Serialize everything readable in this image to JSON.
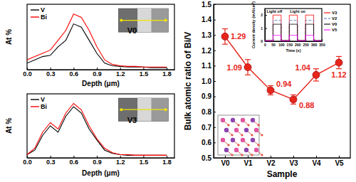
{
  "chart_data": [
    {
      "type": "line",
      "x": [
        0,
        0.1,
        0.2,
        0.3,
        0.4,
        0.5,
        0.6,
        0.7,
        0.8,
        0.9,
        1.0,
        1.1,
        1.2,
        1.3,
        1.4,
        1.5,
        1.6,
        1.7,
        1.8
      ],
      "xlim": [
        0,
        1.9
      ],
      "xticks": [
        {
          "value": 0,
          "label": "0.0"
        },
        0.3,
        0.6,
        0.9,
        1.2,
        1.5,
        1.8
      ],
      "ylim": [
        0,
        1
      ],
      "xlabel": "Depth (μm)",
      "ylabel": "At %",
      "tick_labels": "x",
      "legend": "upper left",
      "annotations": [
        "V0"
      ],
      "series": [
        {
          "name": "V",
          "color": "#000000",
          "values": [
            0.1,
            0.15,
            0.2,
            0.22,
            0.35,
            0.45,
            0.7,
            0.65,
            0.45,
            0.25,
            0.1,
            0.06,
            0.05,
            0.04,
            0.04,
            0.04,
            0.03,
            0.03,
            0.03
          ]
        },
        {
          "name": "Bi",
          "color": "#ff0000",
          "values": [
            0.15,
            0.2,
            0.25,
            0.3,
            0.45,
            0.6,
            0.85,
            0.8,
            0.6,
            0.35,
            0.15,
            0.08,
            0.06,
            0.05,
            0.05,
            0.04,
            0.04,
            0.04,
            0.04
          ]
        }
      ]
    },
    {
      "type": "line",
      "x": [
        0,
        0.1,
        0.2,
        0.3,
        0.4,
        0.5,
        0.6,
        0.7,
        0.8,
        0.9,
        1.0,
        1.1,
        1.2,
        1.3,
        1.4,
        1.5,
        1.6,
        1.7,
        1.8
      ],
      "xlim": [
        0,
        1.9
      ],
      "xticks": [
        {
          "value": 0,
          "label": "0.0"
        },
        0.3,
        0.6,
        0.9,
        1.2,
        1.5,
        1.8
      ],
      "ylim": [
        0,
        1
      ],
      "xlabel": "Depth (μm)",
      "ylabel": "At %",
      "tick_labels": "x",
      "legend": "upper left",
      "annotations": [
        "V3"
      ],
      "series": [
        {
          "name": "V",
          "color": "#000000",
          "values": [
            0.05,
            0.12,
            0.35,
            0.5,
            0.4,
            0.65,
            0.8,
            0.7,
            0.45,
            0.28,
            0.12,
            0.07,
            0.05,
            0.04,
            0.04,
            0.04,
            0.04,
            0.04,
            0.04
          ]
        },
        {
          "name": "Bi",
          "color": "#ff0000",
          "values": [
            0.05,
            0.15,
            0.4,
            0.55,
            0.45,
            0.7,
            0.85,
            0.75,
            0.5,
            0.3,
            0.15,
            0.08,
            0.05,
            0.05,
            0.04,
            0.04,
            0.04,
            0.04,
            0.04
          ]
        }
      ]
    },
    {
      "type": "line",
      "categories": [
        "V0",
        "V1",
        "V2",
        "V3",
        "V4",
        "V5"
      ],
      "values": [
        1.29,
        1.09,
        0.94,
        0.88,
        1.04,
        1.12
      ],
      "errors": [
        0.05,
        0.05,
        0.03,
        0.03,
        0.04,
        0.04
      ],
      "ylim": [
        0.5,
        1.5
      ],
      "yticks": [
        0.5,
        0.6,
        0.7,
        0.8,
        0.9,
        {
          "value": 1,
          "label": "1.0"
        },
        1.1,
        1.2,
        1.3,
        1.4,
        1.5
      ],
      "xlabel": "Sample",
      "ylabel": "Bulk atomic ratio of Bi/V",
      "color": "#e8251b",
      "marker": "circle",
      "data_labels": true
    },
    {
      "type": "line",
      "x": [
        0,
        50,
        50,
        100,
        100,
        150,
        150,
        200,
        200,
        250,
        250,
        300,
        300,
        350
      ],
      "xlim": [
        0,
        350
      ],
      "xticks": [
        0,
        50,
        100,
        150,
        200,
        250,
        300,
        350
      ],
      "ylim": [
        0,
        2.5
      ],
      "yticks": [
        0,
        1,
        2
      ],
      "xlabel": "Time (s)",
      "ylabel": "Current density (mA/cm²)",
      "legend": "right",
      "annotations": [
        "Light off",
        "Light on"
      ],
      "series": [
        {
          "name": "V3",
          "color": "#ff0000",
          "values": [
            0.05,
            0.05,
            2.0,
            2.0,
            0.05,
            0.05,
            2.0,
            2.0,
            0.05,
            0.05,
            2.0,
            2.0,
            0.05,
            0.05
          ]
        },
        {
          "name": "V2",
          "color": "#4472c4",
          "line_style": "dashed",
          "values": [
            0.05,
            0.05,
            1.6,
            1.6,
            0.05,
            0.05,
            1.6,
            1.6,
            0.05,
            0.05,
            1.6,
            1.6,
            0.05,
            0.05
          ]
        },
        {
          "name": "V0",
          "color": "#000000",
          "values": [
            0.05,
            0.05,
            1.3,
            1.3,
            0.05,
            0.05,
            1.3,
            1.3,
            0.05,
            0.05,
            1.3,
            1.3,
            0.05,
            0.05
          ]
        },
        {
          "name": "V5",
          "color": "#ff00ff",
          "values": [
            0.02,
            0.02,
            0.45,
            0.45,
            0.02,
            0.02,
            0.45,
            0.45,
            0.02,
            0.02,
            0.45,
            0.45,
            0.02,
            0.02
          ]
        }
      ]
    }
  ]
}
